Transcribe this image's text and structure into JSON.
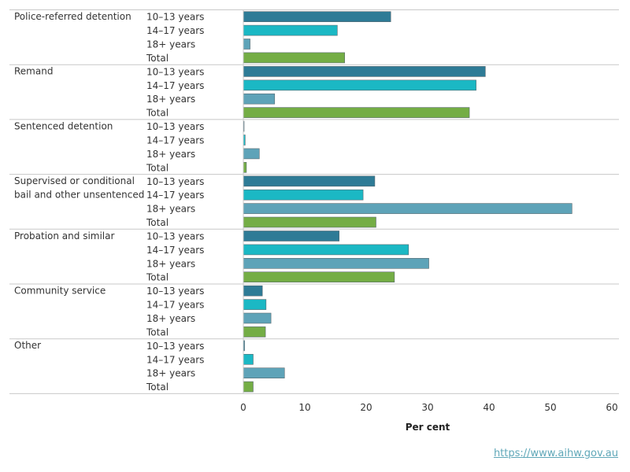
{
  "chart_data": {
    "type": "bar",
    "orientation": "horizontal",
    "xlabel": "Per cent",
    "xlim": [
      0,
      60
    ],
    "xticks": [
      0,
      10,
      20,
      30,
      40,
      50,
      60
    ],
    "grid": false,
    "categories": [
      "10–13 years",
      "14–17 years",
      "18+ years",
      "Total"
    ],
    "category_colors": [
      "#2e7b96",
      "#1bb8c4",
      "#5ea3b8",
      "#74ad45"
    ],
    "groups": [
      {
        "label_lines": [
          "Police-referred detention"
        ],
        "values": [
          24.0,
          15.3,
          1.1,
          16.5
        ]
      },
      {
        "label_lines": [
          "Remand"
        ],
        "values": [
          39.4,
          37.9,
          5.1,
          36.8
        ]
      },
      {
        "label_lines": [
          "Sentenced detention"
        ],
        "values": [
          0.1,
          0.3,
          2.6,
          0.5
        ]
      },
      {
        "label_lines": [
          "Supervised or conditional",
          "bail and other unsentenced"
        ],
        "values": [
          21.4,
          19.5,
          53.5,
          21.6
        ]
      },
      {
        "label_lines": [
          "Probation and similar"
        ],
        "values": [
          15.6,
          26.9,
          30.2,
          24.6
        ]
      },
      {
        "label_lines": [
          "Community service"
        ],
        "values": [
          3.1,
          3.7,
          4.5,
          3.6
        ]
      },
      {
        "label_lines": [
          "Other"
        ],
        "values": [
          0.2,
          1.6,
          6.7,
          1.6
        ]
      }
    ]
  },
  "footer": {
    "source_url": "https://www.aihw.gov.au"
  }
}
